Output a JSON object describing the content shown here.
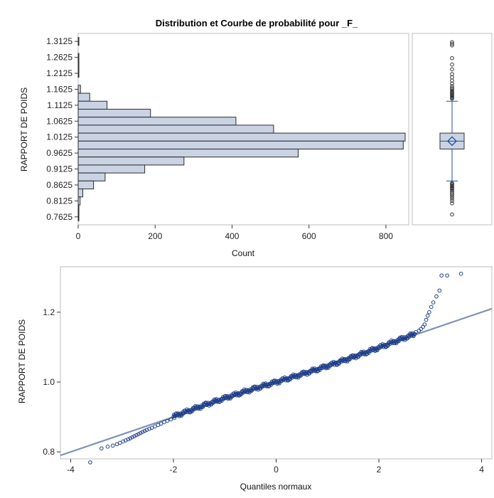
{
  "chart_data": [
    {
      "type": "bar",
      "title": "Distribution et Courbe de probabilité pour _F_",
      "orientation": "horizontal",
      "xlabel": "Count",
      "ylabel": "RAPPORT DE POIDS",
      "xlim": [
        0,
        850
      ],
      "x_ticks": [
        "0",
        "200",
        "400",
        "600",
        "800"
      ],
      "categories": [
        "1.3125",
        "1.2875",
        "1.2625",
        "1.2375",
        "1.2125",
        "1.1875",
        "1.1625",
        "1.1375",
        "1.1125",
        "1.0875",
        "1.0625",
        "1.0375",
        "1.0125",
        "0.9875",
        "0.9625",
        "0.9375",
        "0.9125",
        "0.8875",
        "0.8625",
        "0.8375",
        "0.8125",
        "0.7875",
        "0.7625"
      ],
      "values": [
        1,
        0,
        1,
        1,
        1,
        0,
        6,
        30,
        75,
        188,
        410,
        508,
        850,
        845,
        572,
        275,
        173,
        70,
        40,
        12,
        5,
        1,
        1
      ],
      "y_tick_labels": [
        "1.3125",
        "1.2625",
        "1.2125",
        "1.1625",
        "1.1125",
        "1.0625",
        "1.0125",
        "0.9625",
        "0.9125",
        "0.8625",
        "0.8125",
        "0.7625"
      ],
      "grid": false,
      "colors": {
        "bar_fill": "#cad3e4",
        "bar_stroke": "#2b2b2b"
      }
    },
    {
      "type": "box",
      "q1": 0.975,
      "median": 1.0,
      "q3": 1.025,
      "mean": 1.0,
      "whisker_low": 0.875,
      "whisker_high": 1.125,
      "ylim": [
        0.7375,
        1.3375
      ],
      "outliers_high": [
        1.133,
        1.136,
        1.139,
        1.142,
        1.145,
        1.148,
        1.151,
        1.154,
        1.158,
        1.162,
        1.166,
        1.172,
        1.18,
        1.19,
        1.2,
        1.21,
        1.225,
        1.24,
        1.26,
        1.3,
        1.305,
        1.31
      ],
      "outliers_low": [
        0.868,
        0.865,
        0.862,
        0.859,
        0.856,
        0.853,
        0.85,
        0.846,
        0.842,
        0.837,
        0.832,
        0.826,
        0.82,
        0.813,
        0.805,
        0.77
      ],
      "colors": {
        "box_fill": "#cad3e4",
        "box_stroke": "#1f4e9a",
        "outlier": "#333333"
      }
    },
    {
      "type": "scatter",
      "xlabel": "Quantiles normaux",
      "ylabel": "RAPPORT DE POIDS",
      "xlim": [
        -4.2,
        4.2
      ],
      "ylim": [
        0.78,
        1.33
      ],
      "x_ticks": [
        "-4",
        "-2",
        "0",
        "2",
        "4"
      ],
      "y_ticks": [
        "0.8",
        "1.0",
        "1.2"
      ],
      "reference_line": {
        "intercept": 1.0,
        "slope": 0.05
      },
      "points": [
        [
          -3.62,
          0.77
        ],
        [
          -3.4,
          0.81
        ],
        [
          -3.28,
          0.815
        ],
        [
          -3.18,
          0.818
        ],
        [
          -3.1,
          0.822
        ],
        [
          -3.04,
          0.826
        ],
        [
          -2.98,
          0.83
        ],
        [
          -2.93,
          0.833
        ],
        [
          -2.88,
          0.836
        ],
        [
          -2.84,
          0.839
        ],
        [
          -2.8,
          0.842
        ],
        [
          -2.76,
          0.845
        ],
        [
          -2.72,
          0.848
        ],
        [
          -2.68,
          0.851
        ],
        [
          -2.64,
          0.854
        ],
        [
          -2.6,
          0.857
        ],
        [
          -2.56,
          0.86
        ],
        [
          -2.52,
          0.863
        ],
        [
          -2.47,
          0.866
        ],
        [
          -2.42,
          0.869
        ],
        [
          -2.36,
          0.873
        ],
        [
          -2.3,
          0.877
        ],
        [
          -2.24,
          0.881
        ],
        [
          -2.18,
          0.885
        ],
        [
          -2.12,
          0.889
        ],
        [
          -2.05,
          0.893
        ],
        [
          -1.98,
          0.897
        ],
        [
          2.72,
          1.143
        ],
        [
          2.78,
          1.147
        ],
        [
          2.82,
          1.152
        ],
        [
          2.86,
          1.158
        ],
        [
          2.89,
          1.165
        ],
        [
          2.92,
          1.178
        ],
        [
          2.95,
          1.19
        ],
        [
          2.98,
          1.2
        ],
        [
          3.02,
          1.215
        ],
        [
          3.06,
          1.228
        ],
        [
          3.12,
          1.245
        ],
        [
          3.18,
          1.262
        ],
        [
          3.22,
          1.305
        ],
        [
          3.33,
          1.305
        ],
        [
          3.6,
          1.31
        ]
      ],
      "dense_band": {
        "x_from": -2.0,
        "x_to": 2.7,
        "slope": 0.05,
        "intercept": 1.0
      },
      "colors": {
        "marker": "#1f3f8a",
        "line": "#7f93b5"
      }
    }
  ]
}
